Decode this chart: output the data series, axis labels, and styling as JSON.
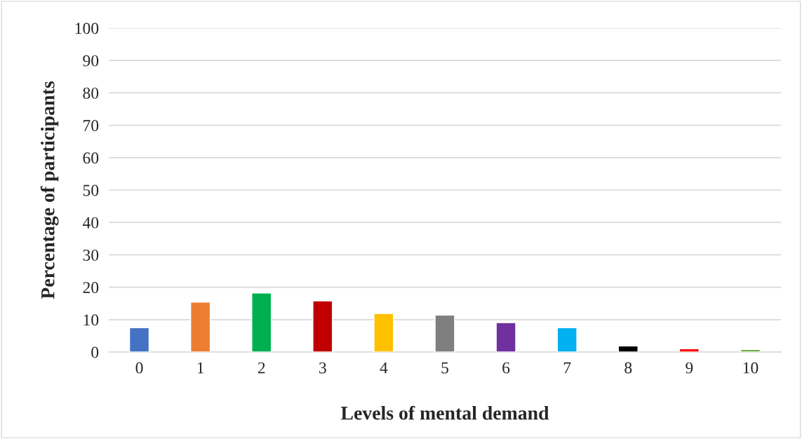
{
  "chart_data": {
    "type": "bar",
    "xlabel": "Levels of mental demand",
    "ylabel": "Percentage of participants",
    "categories": [
      "0",
      "1",
      "2",
      "3",
      "4",
      "5",
      "6",
      "7",
      "8",
      "9",
      "10"
    ],
    "values": [
      7.5,
      15.4,
      18.2,
      15.8,
      11.9,
      11.4,
      9.1,
      7.5,
      1.9,
      1.0,
      0.8
    ],
    "colors": [
      "#4472c4",
      "#ed7d31",
      "#00b050",
      "#c00000",
      "#ffc000",
      "#7f7f7f",
      "#7030a0",
      "#00b0f0",
      "#000000",
      "#ff0000",
      "#70ad47"
    ],
    "ylim": [
      0,
      100
    ],
    "yticks": [
      0,
      10,
      20,
      30,
      40,
      50,
      60,
      70,
      80,
      90,
      100
    ],
    "grid": "y",
    "legend": false
  }
}
